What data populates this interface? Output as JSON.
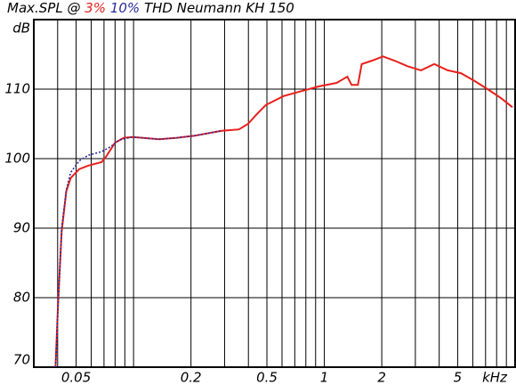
{
  "chart_data": {
    "type": "line",
    "title": "Max.SPL @",
    "title_suffix": "THD Neumann KH 150",
    "ylabel": "dB",
    "xlabel": "kHz",
    "xlog": true,
    "grid": true,
    "xlim": [
      0.03,
      10
    ],
    "ylim": [
      70,
      120
    ],
    "xticks": [
      0.05,
      0.2,
      0.5,
      1,
      2,
      5
    ],
    "x_grid": [
      0.03,
      0.04,
      0.05,
      0.06,
      0.07,
      0.08,
      0.09,
      0.1,
      0.2,
      0.3,
      0.4,
      0.5,
      0.6,
      0.7,
      0.8,
      0.9,
      1,
      2,
      3,
      4,
      5,
      6,
      7,
      8,
      9,
      10
    ],
    "yticks": [
      70,
      80,
      90,
      100,
      110
    ],
    "series": [
      {
        "name": "3%",
        "color": "#e8201c",
        "dash": false,
        "x": [
          0.039,
          0.0402,
          0.042,
          0.0444,
          0.0468,
          0.052,
          0.058,
          0.068,
          0.0718,
          0.08,
          0.089,
          0.099,
          0.136,
          0.169,
          0.209,
          0.289,
          0.357,
          0.398,
          0.443,
          0.493,
          0.611,
          0.757,
          0.938,
          1.16,
          1.32,
          1.39,
          1.5,
          1.57,
          1.78,
          2.03,
          2.33,
          2.73,
          3.21,
          3.77,
          4.43,
          5.2,
          6.11,
          7.17,
          8.43,
          9.68
        ],
        "values": [
          70,
          79.2,
          89.5,
          95.3,
          97.2,
          98.5,
          99.0,
          99.5,
          100.3,
          102.3,
          103.0,
          103.1,
          102.8,
          103.0,
          103.3,
          104.0,
          104.2,
          105.0,
          106.4,
          107.7,
          109.0,
          109.7,
          110.4,
          110.9,
          111.8,
          110.6,
          110.6,
          113.6,
          114.1,
          114.7,
          114.1,
          113.3,
          112.7,
          113.6,
          112.7,
          112.3,
          111.2,
          110.0,
          108.7,
          107.4
        ]
      },
      {
        "name": "10%",
        "color": "#2a2a9c",
        "dash": true,
        "x": [
          0.039,
          0.0402,
          0.042,
          0.0444,
          0.0468,
          0.052,
          0.058,
          0.068,
          0.0757,
          0.0843,
          0.099,
          0.136,
          0.169,
          0.209,
          0.289
        ],
        "values": [
          70,
          79,
          90,
          95.5,
          98,
          99.7,
          100.5,
          101,
          101.7,
          102.7,
          103.1,
          102.8,
          103.0,
          103.3,
          104.0
        ]
      }
    ]
  }
}
